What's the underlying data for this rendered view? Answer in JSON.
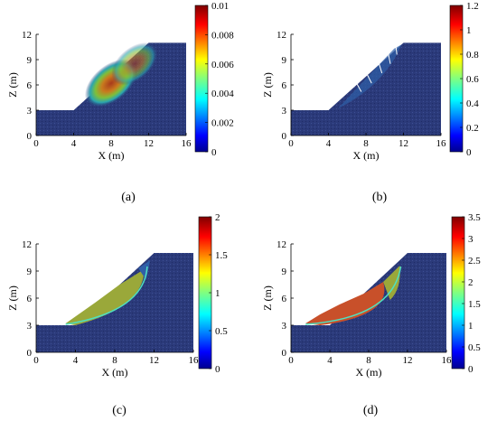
{
  "chart_data": [
    {
      "type": "heatmap",
      "caption": "(a)",
      "xlabel": "X (m)",
      "ylabel": "Z (m)",
      "xlim": [
        0,
        16
      ],
      "ylim": [
        0,
        12
      ],
      "xticks": [
        "0",
        "4",
        "8",
        "12",
        "16"
      ],
      "yticks": [
        "0",
        "3",
        "6",
        "9",
        "12"
      ],
      "colorbar": {
        "min": 0,
        "max": 0.01,
        "ticks": [
          "0",
          "0.002",
          "0.004",
          "0.006",
          "0.008",
          "0.01"
        ]
      },
      "variant": "diffuse"
    },
    {
      "type": "heatmap",
      "caption": "(b)",
      "xlabel": "X (m)",
      "ylabel": "Z (m)",
      "xlim": [
        0,
        16
      ],
      "ylim": [
        0,
        12
      ],
      "xticks": [
        "0",
        "4",
        "8",
        "12",
        "16"
      ],
      "yticks": [
        "0",
        "3",
        "6",
        "9",
        "12"
      ],
      "colorbar": {
        "min": 0,
        "max": 1.2,
        "ticks": [
          "0",
          "0.2",
          "0.4",
          "0.6",
          "0.8",
          "1",
          "1.2"
        ]
      },
      "variant": "cracks"
    },
    {
      "type": "heatmap",
      "caption": "(c)",
      "xlabel": "X (m)",
      "ylabel": "Z (m)",
      "xlim": [
        0,
        16
      ],
      "ylim": [
        0,
        12
      ],
      "xticks": [
        "0",
        "4",
        "8",
        "12",
        "16"
      ],
      "yticks": [
        "0",
        "3",
        "6",
        "9",
        "12"
      ],
      "colorbar": {
        "min": 0,
        "max": 2,
        "ticks": [
          "0",
          "0.5",
          "1",
          "1.5",
          "2"
        ]
      },
      "variant": "slide_mid"
    },
    {
      "type": "heatmap",
      "caption": "(d)",
      "xlabel": "X (m)",
      "ylabel": "Z (m)",
      "xlim": [
        0,
        16
      ],
      "ylim": [
        0,
        12
      ],
      "xticks": [
        "0",
        "4",
        "8",
        "12",
        "16"
      ],
      "yticks": [
        "0",
        "3",
        "6",
        "9",
        "12"
      ],
      "colorbar": {
        "min": 0,
        "max": 3.5,
        "ticks": [
          "0",
          "0.5",
          "1",
          "1.5",
          "2",
          "2.5",
          "3",
          "3.5"
        ]
      },
      "variant": "slide_full"
    }
  ],
  "colors": {
    "slope_fill": "#2b3a7a",
    "jet": [
      "#00008f",
      "#0000ff",
      "#0080ff",
      "#00ffff",
      "#80ff80",
      "#ffff00",
      "#ff8000",
      "#ff0000",
      "#800000"
    ]
  }
}
